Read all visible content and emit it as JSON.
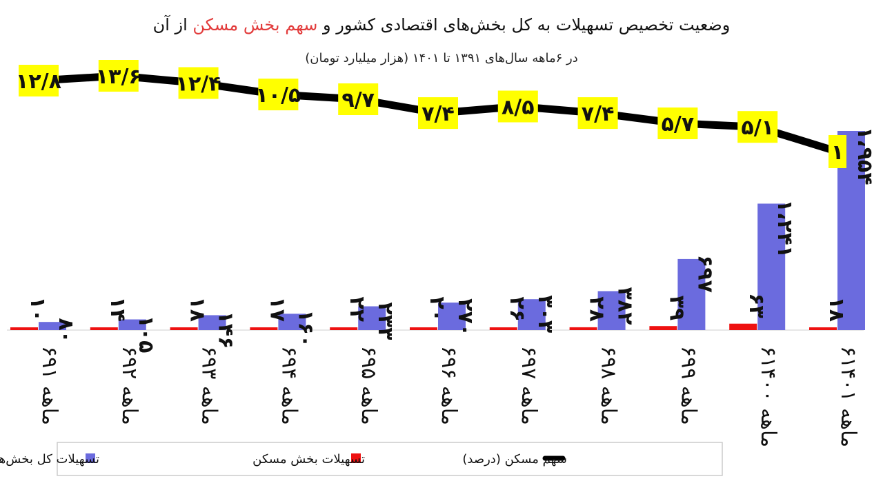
{
  "chart_data": {
    "type": "bar",
    "title_parts": [
      "وضعیت تخصیص تسهیلات به کل بخش‌های اقتصادی کشور و ",
      "سهم بخش مسکن",
      " از آن"
    ],
    "subtitle": "در ۶ماهه سال‌های ۱۳۹۱ تا ۱۴۰۱ (هزار میلیارد تومان)",
    "categories": [
      "۶ماهه ۹۱",
      "۶ماهه ۹۲",
      "۶ماهه ۹۳",
      "۶ماهه ۹۴",
      "۶ماهه ۹۵",
      "۶ماهه ۹۶",
      "۶ماهه ۹۷",
      "۶ماهه ۹۸",
      "۶ماهه ۹۹",
      "۶ماهه ۱۴۰۰",
      "۶ماهه ۱۴۰۱"
    ],
    "series": [
      {
        "name": "تسهیلات بخش مسکن",
        "type": "bar",
        "color": "#ee1111",
        "values": [
          10,
          14,
          18,
          17,
          22,
          20,
          26,
          28,
          39,
          63,
          18
        ],
        "labels": [
          "۱۰",
          "۱۴",
          "۱۸",
          "۱۷",
          "۲۲",
          "۲۰",
          "۲۶",
          "۲۸",
          "۳۹",
          "۶۳",
          "۱۸"
        ]
      },
      {
        "name": "تسهیلات کل بخش‌های اقتصادی",
        "type": "bar",
        "color": "#6b6bde",
        "values": [
          80,
          105,
          146,
          160,
          233,
          270,
          303,
          382,
          697,
          1241,
          1954
        ],
        "labels": [
          "۸۰",
          "۱۰۵",
          "۱۴۶",
          "۱۶۰",
          "۲۳۳",
          "۲۷۰",
          "۳۰۳",
          "۳۸۲",
          "۶۹۷",
          "۱،۲۴۱",
          "۱،۹۵۴"
        ]
      },
      {
        "name": "سهم مسکن (درصد)",
        "type": "line",
        "color": "#000000",
        "values": [
          12.8,
          13.6,
          12.4,
          10.5,
          9.7,
          7.4,
          8.5,
          7.4,
          5.7,
          5.1,
          1
        ],
        "labels": [
          "۱۲/۸",
          "۱۳/۶",
          "۱۲/۴",
          "۱۰/۵",
          "۹/۷",
          "۷/۴",
          "۸/۵",
          "۷/۴",
          "۵/۷",
          "۵/۱",
          "۱"
        ]
      }
    ],
    "ylim_bars": [
      0,
      1954
    ],
    "ylim_share": [
      1,
      13.6
    ],
    "grid": false,
    "legend_position": "bottom"
  }
}
